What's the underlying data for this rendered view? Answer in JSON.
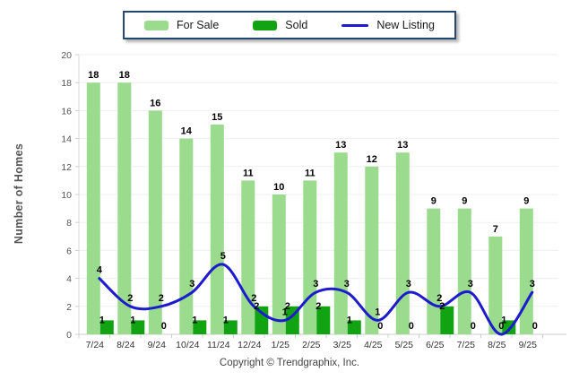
{
  "legend": {
    "items": [
      {
        "label": "For Sale",
        "color": "#9ADB8D",
        "marker": "swatch"
      },
      {
        "label": "Sold",
        "color": "#12A312",
        "marker": "swatch"
      },
      {
        "label": "New Listing",
        "color": "#1C1CCE",
        "marker": "line"
      }
    ]
  },
  "y_axis": {
    "title": "Number of Homes"
  },
  "footer": {
    "copyright": "Copyright © Trendgraphix, Inc."
  },
  "chart_data": {
    "type": "bar",
    "subtype": "grouped bars with smooth overlay line",
    "categories": [
      "7/24",
      "8/24",
      "9/24",
      "10/24",
      "11/24",
      "12/24",
      "1/25",
      "2/25",
      "3/25",
      "4/25",
      "5/25",
      "6/25",
      "7/25",
      "8/25",
      "9/25"
    ],
    "series": [
      {
        "name": "For Sale",
        "type": "bar",
        "color": "#9ADB8D",
        "values": [
          18,
          18,
          16,
          14,
          15,
          11,
          10,
          11,
          13,
          12,
          13,
          9,
          9,
          7,
          9
        ]
      },
      {
        "name": "Sold",
        "type": "bar",
        "color": "#12A312",
        "values": [
          1,
          1,
          0,
          1,
          1,
          2,
          2,
          2,
          1,
          0,
          0,
          2,
          0,
          1,
          0
        ]
      },
      {
        "name": "New Listing",
        "type": "line",
        "color": "#1C1CCE",
        "values": [
          4,
          2,
          2,
          3,
          5,
          2,
          1,
          3,
          3,
          1,
          3,
          2,
          3,
          0,
          3
        ]
      }
    ],
    "title": "",
    "xlabel": "",
    "ylabel": "Number of Homes",
    "ylim": [
      0,
      20
    ],
    "ytick_step": 2,
    "grid": true,
    "legend_position": "top-center",
    "data_labels": true
  }
}
